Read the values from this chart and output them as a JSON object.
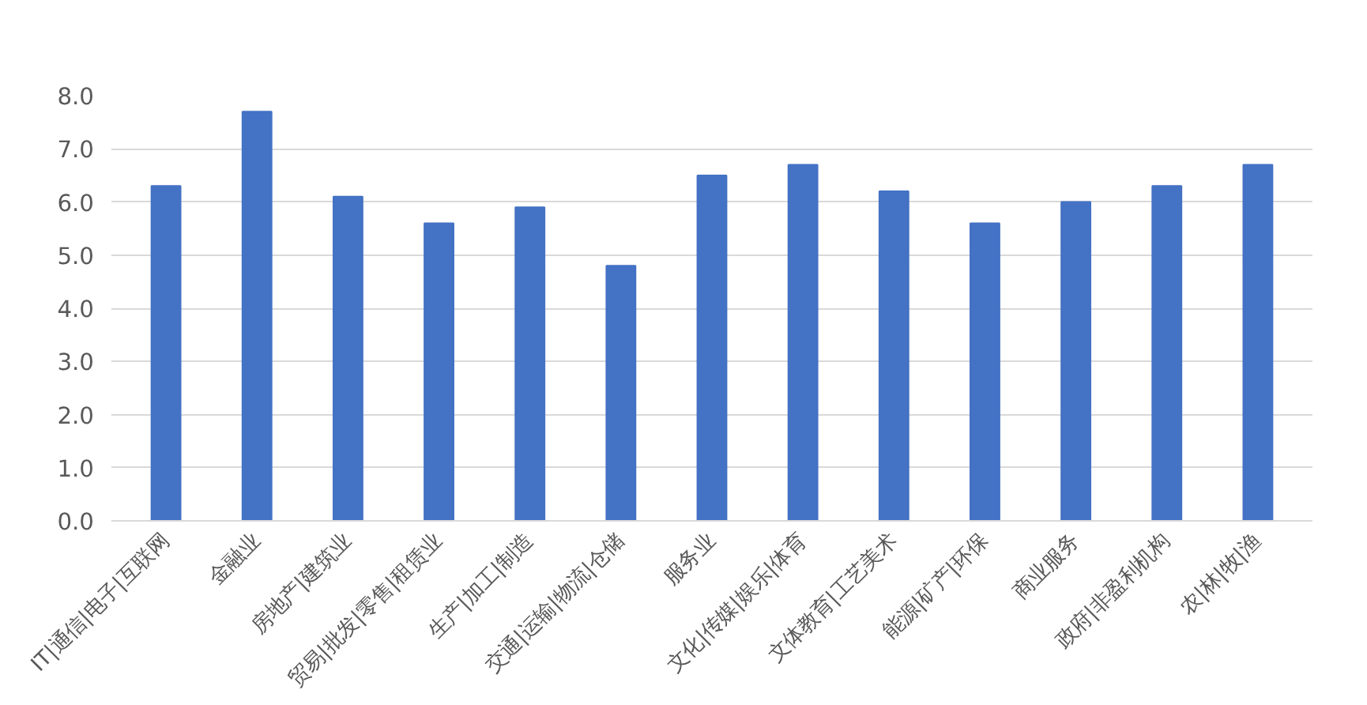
{
  "chart_data": {
    "type": "bar",
    "categories": [
      "IT|通信|电子|互联网",
      "金融业",
      "房地产|建筑业",
      "贸易|批发|零售|租赁业",
      "生产|加工|制造",
      "交通|运输|物流|仓储",
      "服务业",
      "文化|传媒|娱乐|体育",
      "文体教育|工艺美术",
      "能源|矿产|环保",
      "商业服务",
      "政府|非盈利机构",
      "农|林|牧|渔"
    ],
    "values": [
      6.3,
      7.7,
      6.1,
      5.6,
      5.9,
      4.8,
      6.5,
      6.7,
      6.2,
      5.6,
      6.0,
      6.3,
      6.7
    ],
    "color": "#4472c4",
    "ylim": [
      0,
      8
    ],
    "yticks": [
      {
        "value": 0,
        "label": "0.0"
      },
      {
        "value": 1,
        "label": "1.0"
      },
      {
        "value": 2,
        "label": "2.0"
      },
      {
        "value": 3,
        "label": "3.0"
      },
      {
        "value": 4,
        "label": "4.0"
      },
      {
        "value": 5,
        "label": "5.0"
      },
      {
        "value": 6,
        "label": "6.0"
      },
      {
        "value": 7,
        "label": "7.0"
      },
      {
        "value": 8,
        "label": "8.0"
      }
    ],
    "grid": "y"
  }
}
